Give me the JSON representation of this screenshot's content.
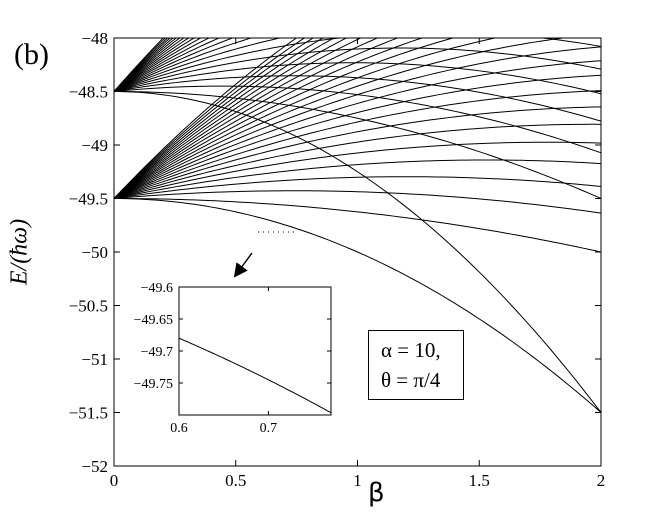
{
  "panel_label": "(b)",
  "chart_data": [
    {
      "type": "line",
      "xlabel": "β",
      "ylabel": "E/(ħω)",
      "xlim": [
        0,
        2
      ],
      "ylim": [
        -52,
        -48
      ],
      "xticks": [
        0,
        0.5,
        1,
        1.5,
        2
      ],
      "xtick_labels": [
        "0",
        "0.5",
        "1",
        "1.5",
        "2"
      ],
      "yticks": [
        -52,
        -51.5,
        -51,
        -50.5,
        -50,
        -49.5,
        -49,
        -48.5,
        -48
      ],
      "ytick_labels": [
        "−52",
        "−51.5",
        "−51",
        "−50.5",
        "−50",
        "−49.5",
        "−49",
        "−48.5",
        "−48"
      ],
      "grid": false,
      "annotation": [
        "α = 10,",
        "θ = π/4"
      ],
      "series_families": [
        {
          "e0": -49.5,
          "count": 24,
          "curv_min": 0.125,
          "curv_max": 0.53,
          "slope_min": 0,
          "slope_max": 2.4
        },
        {
          "e0": -48.5,
          "count": 22,
          "curv_min": 0.25,
          "curv_max": 0.62,
          "slope_min": 0,
          "slope_max": 2.6
        }
      ],
      "envelope_curves": [
        {
          "e0": -49.5,
          "curv": 0.5
        },
        {
          "e0": -48.5,
          "curv": 0.75
        }
      ]
    },
    {
      "type": "line",
      "role": "inset",
      "xlim": [
        0.6,
        0.77
      ],
      "ylim": [
        -49.8,
        -49.6
      ],
      "xticks": [
        0.6,
        0.7
      ],
      "xtick_labels": [
        "0.6",
        "0.7"
      ],
      "yticks": [
        -49.75,
        -49.7,
        -49.65,
        -49.6
      ],
      "ytick_labels": [
        "−49.75",
        "−49.7",
        "−49.65",
        "−49.6"
      ]
    }
  ]
}
